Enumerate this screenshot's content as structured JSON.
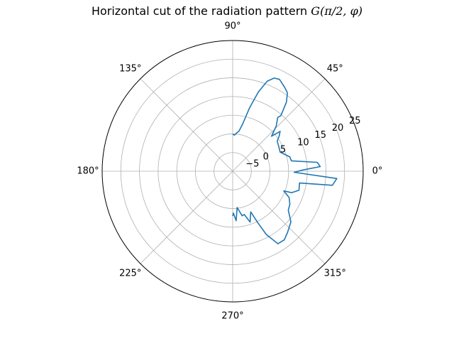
{
  "chart_data": {
    "type": "line",
    "projection": "polar",
    "title": "Horizontal cut of the radiation pattern",
    "title_math": "G(π/2, φ)",
    "angle_ticks": [
      {
        "deg": 0,
        "label": "0°"
      },
      {
        "deg": 45,
        "label": "45°"
      },
      {
        "deg": 90,
        "label": "90°"
      },
      {
        "deg": 135,
        "label": "135°"
      },
      {
        "deg": 180,
        "label": "180°"
      },
      {
        "deg": 225,
        "label": "225°"
      },
      {
        "deg": 270,
        "label": "270°"
      },
      {
        "deg": 315,
        "label": "315°"
      }
    ],
    "radial_ticks": [
      {
        "value": -5,
        "label": "−5"
      },
      {
        "value": 0,
        "label": "0"
      },
      {
        "value": 5,
        "label": "5"
      },
      {
        "value": 10,
        "label": "10"
      },
      {
        "value": 15,
        "label": "15"
      },
      {
        "value": 20,
        "label": "20"
      },
      {
        "value": 25,
        "label": "25"
      }
    ],
    "rlim": [
      -10,
      25
    ],
    "grid": true,
    "color": "#1f77b4",
    "series": [
      {
        "points": [
          {
            "phi": 90,
            "r": -0.1
          },
          {
            "phi": 87,
            "r": -0.3
          },
          {
            "phi": 84,
            "r": 0.3
          },
          {
            "phi": 81,
            "r": 0.9
          },
          {
            "phi": 78,
            "r": 3.0
          },
          {
            "phi": 75,
            "r": 7.6
          },
          {
            "phi": 72,
            "r": 12.3
          },
          {
            "phi": 69,
            "r": 15.8
          },
          {
            "phi": 66,
            "r": 17.3
          },
          {
            "phi": 63,
            "r": 17.6
          },
          {
            "phi": 61,
            "r": 17.1
          },
          {
            "phi": 58,
            "r": 16.4
          },
          {
            "phi": 55,
            "r": 15.6
          },
          {
            "phi": 52,
            "r": 13.4
          },
          {
            "phi": 49,
            "r": 9.7
          },
          {
            "phi": 50,
            "r": 8.8
          },
          {
            "phi": 46,
            "r": 6.8
          },
          {
            "phi": 42,
            "r": 4.0
          },
          {
            "phi": 40,
            "r": 6.6
          },
          {
            "phi": 37,
            "r": 5.6
          },
          {
            "phi": 34,
            "r": 4.4
          },
          {
            "phi": 26,
            "r": 3.9
          },
          {
            "phi": 22,
            "r": 3.7
          },
          {
            "phi": 14,
            "r": 5.8
          },
          {
            "phi": 10,
            "r": 6.0
          },
          {
            "phi": 6,
            "r": 12.8
          },
          {
            "phi": 3,
            "r": 13.5
          },
          {
            "phi": 1,
            "r": 8.8
          },
          {
            "phi": -1,
            "r": 6.5
          },
          {
            "phi": -4,
            "r": 18.0
          },
          {
            "phi": -8,
            "r": 17.0
          },
          {
            "phi": -10,
            "r": 8.2
          },
          {
            "phi": -16,
            "r": 8.5
          },
          {
            "phi": -20,
            "r": 6.8
          },
          {
            "phi": -21,
            "r": 4.7
          },
          {
            "phi": -25,
            "r": 6.7
          },
          {
            "phi": -30,
            "r": 7.7
          },
          {
            "phi": -35,
            "r": 8.2
          },
          {
            "phi": -41,
            "r": 10.7
          },
          {
            "phi": -48,
            "r": 12.0
          },
          {
            "phi": -53,
            "r": 13.0
          },
          {
            "phi": -58,
            "r": 12.9
          },
          {
            "phi": -62,
            "r": 9.2
          },
          {
            "phi": -64,
            "r": 5.3
          },
          {
            "phi": -66,
            "r": 1.9
          },
          {
            "phi": -71,
            "r": 4.4
          },
          {
            "phi": -75,
            "r": 2.0
          },
          {
            "phi": -78,
            "r": 2.2
          },
          {
            "phi": -83,
            "r": -0.2
          },
          {
            "phi": -86,
            "r": 3.3
          },
          {
            "phi": -89,
            "r": 1.2
          },
          {
            "phi": -90,
            "r": 2.0
          }
        ]
      }
    ]
  }
}
